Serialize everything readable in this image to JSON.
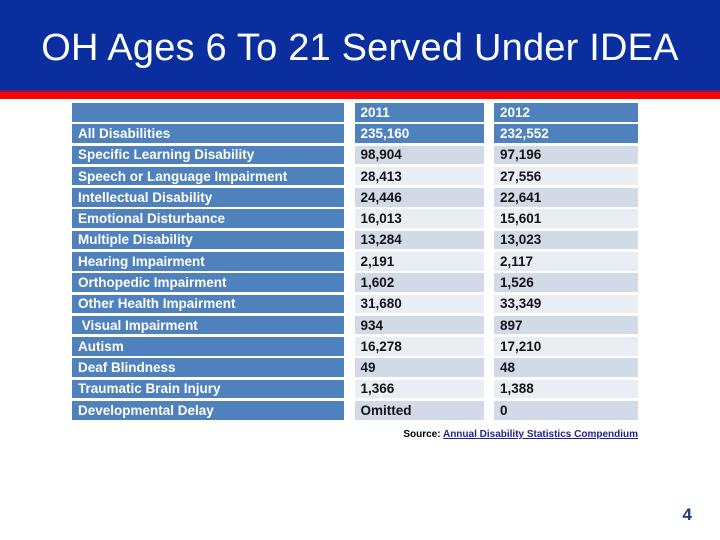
{
  "slide": {
    "title": "OH Ages 6 To 21 Served Under IDEA",
    "page_number": "4"
  },
  "table": {
    "header": {
      "col_category": "",
      "col_2011": "2011",
      "col_2012": "2012"
    },
    "total_row": {
      "label": "All Disabilities",
      "v2011": "235,160",
      "v2012": "232,552"
    },
    "rows": [
      {
        "label": "Specific Learning Disability",
        "v2011": "98,904",
        "v2012": "97,196"
      },
      {
        "label": "Speech or Language Impairment",
        "v2011": "28,413",
        "v2012": "27,556"
      },
      {
        "label": "Intellectual Disability",
        "v2011": "24,446",
        "v2012": "22,641"
      },
      {
        "label": "Emotional Disturbance",
        "v2011": "16,013",
        "v2012": "15,601"
      },
      {
        "label": "Multiple Disability",
        "v2011": "13,284",
        "v2012": "13,023"
      },
      {
        "label": "Hearing Impairment",
        "v2011": "2,191",
        "v2012": "2,117"
      },
      {
        "label": "Orthopedic Impairment",
        "v2011": "1,602",
        "v2012": "1,526"
      },
      {
        "label": "Other Health Impairment",
        "v2011": "31,680",
        "v2012": "33,349"
      },
      {
        "label": " Visual Impairment",
        "v2011": "934",
        "v2012": "897"
      },
      {
        "label": "Autism",
        "v2011": "16,278",
        "v2012": "17,210"
      },
      {
        "label": "Deaf Blindness",
        "v2011": "49",
        "v2012": "48"
      },
      {
        "label": "Traumatic Brain Injury",
        "v2011": "1,366",
        "v2012": "1,388"
      },
      {
        "label": "Developmental Delay",
        "v2011": "Omitted",
        "v2012": "0"
      }
    ]
  },
  "source": {
    "prefix": "Source: ",
    "link_text": "Annual Disability Statistics Compendium"
  },
  "colors": {
    "title_band_bg": "#0b2e9f",
    "accent_red": "#f50505",
    "table_blue": "#4f81bd",
    "band_dark": "#d2d9e7",
    "band_light": "#e9edf4",
    "link": "#23238f",
    "page_number": "#1c3a6e"
  }
}
